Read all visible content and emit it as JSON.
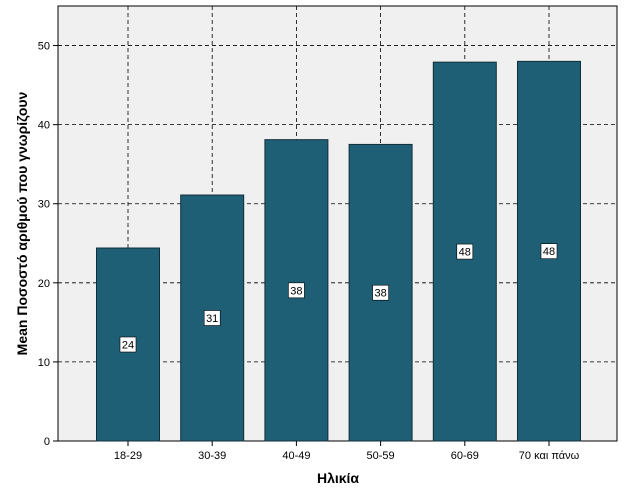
{
  "chart_data": {
    "type": "bar",
    "title": "",
    "xlabel": "Ηλικία",
    "ylabel": "Mean Ποσοστό αριθμού που γνωρίζουν",
    "categories": [
      "18-29",
      "30-39",
      "40-49",
      "50-59",
      "60-69",
      "70 και πάνω"
    ],
    "values": [
      24.4,
      31.1,
      38.1,
      37.5,
      47.9,
      48.0
    ],
    "data_labels": [
      "24",
      "31",
      "38",
      "38",
      "48",
      "48"
    ],
    "y_ticks": [
      "0",
      "10",
      "20",
      "30",
      "40",
      "50"
    ],
    "ylim": [
      0,
      55
    ],
    "grid": true,
    "legend": "none",
    "colors": {
      "bar_fill": "#1f5f75",
      "bar_stroke": "#0f2f3a",
      "plot_background": "#f0f0f0",
      "grid": "#000000"
    }
  }
}
